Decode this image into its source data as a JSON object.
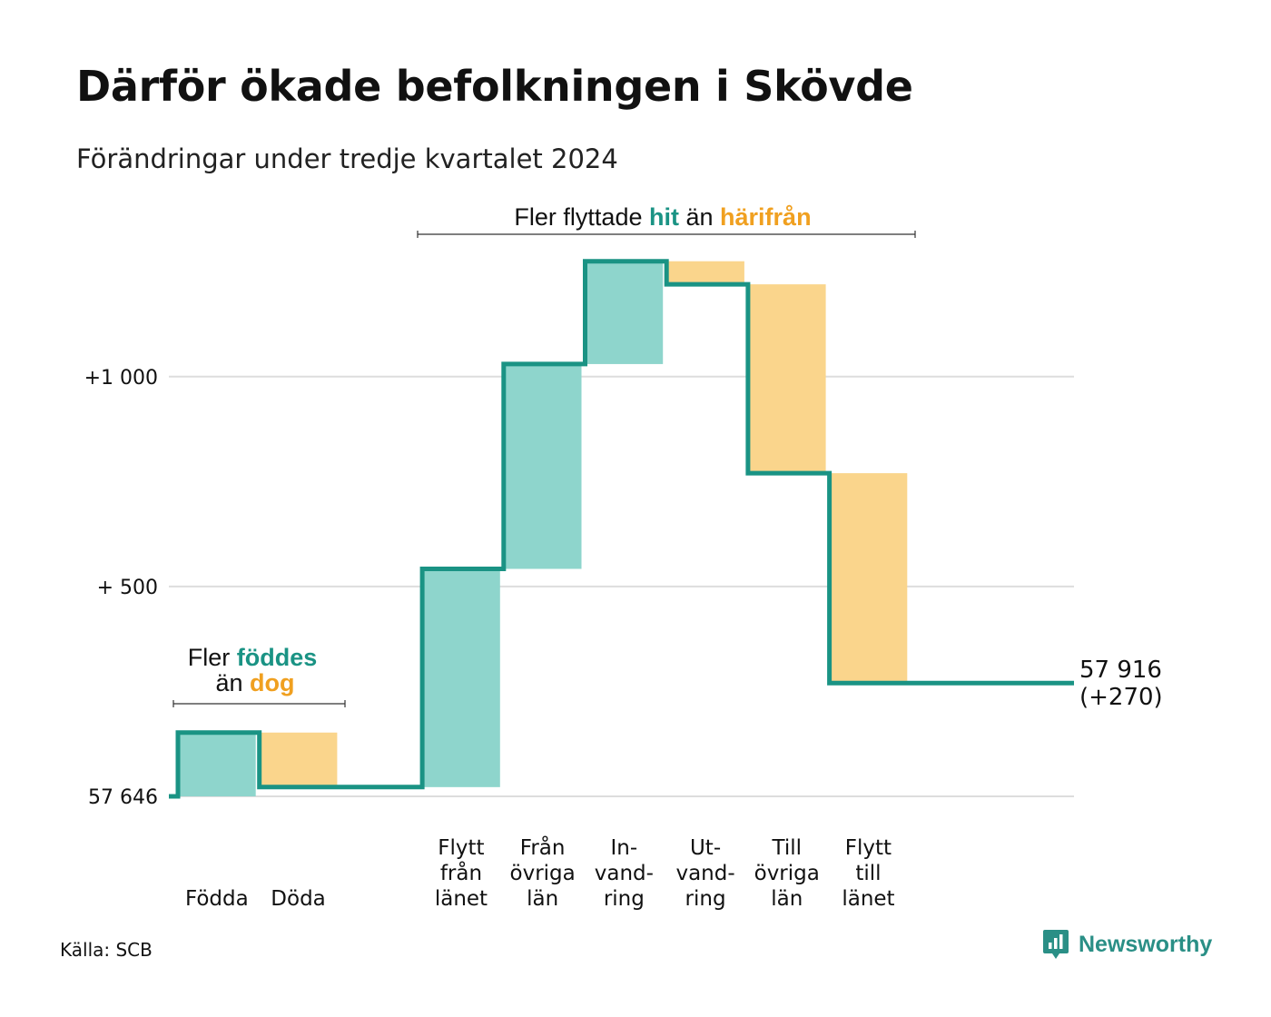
{
  "title": "Därför ökade befolkningen i Skövde",
  "subtitle": "Förändringar under tredje kvartalet 2024",
  "source": "Källa: SCB",
  "brand": "Newsworthy",
  "colors": {
    "increase_fill": "#8ed5cc",
    "decrease_fill": "#fad58c",
    "line": "#1a9384",
    "hi_teal": "#1a9384",
    "hi_orange": "#f0a020",
    "grid": "#dddddd"
  },
  "annotations": {
    "births": {
      "line1_prefix": "Fler ",
      "line1_hi": "föddes",
      "line2_prefix": "än ",
      "line2_hi": "dog"
    },
    "moves": {
      "prefix": "Fler flyttade ",
      "hi1": "hit",
      "mid": " än ",
      "hi2": "härifrån"
    }
  },
  "end_label": {
    "value": "57 916",
    "change": "(+270)"
  },
  "chart_data": {
    "type": "waterfall",
    "title": "Därför ökade befolkningen i Skövde",
    "subtitle": "Förändringar under tredje kvartalet 2024",
    "base": 57646,
    "end": 57916,
    "net_change": 270,
    "y_ticks": [
      {
        "value": 0,
        "label": "57 646"
      },
      {
        "value": 500,
        "label": "+  500"
      },
      {
        "value": 1000,
        "label": "+1 000"
      }
    ],
    "ylim": [
      0,
      1300
    ],
    "grid": true,
    "steps": [
      {
        "label": [
          "Födda"
        ],
        "change": 152,
        "kind": "increase"
      },
      {
        "label": [
          "Döda"
        ],
        "change": -130,
        "kind": "decrease"
      },
      {
        "label": [
          ""
        ],
        "change": 0,
        "kind": "gap"
      },
      {
        "label": [
          "Flytt",
          "från",
          "länet"
        ],
        "change": 520,
        "kind": "increase"
      },
      {
        "label": [
          "Från",
          "övriga",
          "län"
        ],
        "change": 488,
        "kind": "increase"
      },
      {
        "label": [
          "In-",
          "vand-",
          "ring"
        ],
        "change": 245,
        "kind": "increase"
      },
      {
        "label": [
          "Ut-",
          "vand-",
          "ring"
        ],
        "change": -55,
        "kind": "decrease"
      },
      {
        "label": [
          "Till",
          "övriga",
          "län"
        ],
        "change": -450,
        "kind": "decrease"
      },
      {
        "label": [
          "Flytt",
          "till",
          "länet"
        ],
        "change": -500,
        "kind": "decrease"
      }
    ]
  }
}
